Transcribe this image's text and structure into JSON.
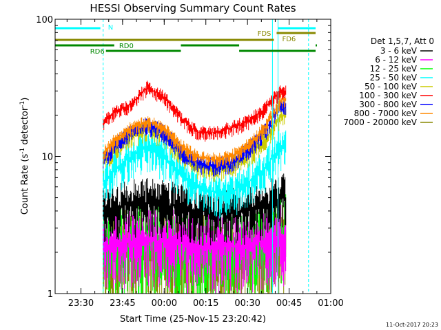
{
  "chart_data": {
    "type": "line",
    "title": "HESSI Observing Summary Count Rates",
    "xlabel": "Start Time (25-Nov-15 23:20:42)",
    "ylabel": "Count Rate (s",
    "ylabel_sup": "-1",
    "ylabel_tail": " detector",
    "ylabel_sup2": "-1",
    "ylabel_close": ")",
    "y_scale": "log",
    "ylim": [
      1,
      100
    ],
    "xlim": [
      "23:20:42",
      "01:00"
    ],
    "x_ticks": [
      "23:30",
      "23:45",
      "00:00",
      "00:15",
      "00:30",
      "00:45",
      "01:00"
    ],
    "y_ticks": [
      "1",
      "10",
      "100"
    ],
    "legend": {
      "placement": "right",
      "header": "Det 1,5,7, Att 0",
      "entries": [
        {
          "name": "3 - 6 keV",
          "color": "#000000"
        },
        {
          "name": "6 - 12 keV",
          "color": "#ff00ff"
        },
        {
          "name": "12 - 25 keV",
          "color": "#00ff00"
        },
        {
          "name": "25 - 50 keV",
          "color": "#00ffff"
        },
        {
          "name": "50 - 100 keV",
          "color": "#cccc00"
        },
        {
          "name": "100 - 300 keV",
          "color": "#ff0000"
        },
        {
          "name": "300 - 800 keV",
          "color": "#0000ff"
        },
        {
          "name": "800 - 7000 keV",
          "color": "#ff8800"
        },
        {
          "name": "7000 - 20000 keV",
          "color": "#888800"
        }
      ]
    },
    "series": [
      {
        "name": "100 - 300 keV",
        "color": "#ff0000",
        "x": [
          23.6333,
          23.7,
          23.8,
          23.9,
          24.0,
          24.1,
          24.2,
          24.3,
          24.4,
          24.5,
          24.6,
          24.7
        ],
        "y": [
          18,
          21,
          24,
          32,
          27,
          19,
          15,
          15,
          16,
          18,
          22,
          30
        ]
      },
      {
        "name": "800 - 7000 keV",
        "color": "#ff8800",
        "x": [
          23.6333,
          23.7,
          23.8,
          23.9,
          24.0,
          24.1,
          24.2,
          24.3,
          24.4,
          24.5,
          24.6,
          24.7
        ],
        "y": [
          10.5,
          13,
          16,
          18,
          16,
          12,
          10,
          9.5,
          10,
          12,
          16,
          26
        ]
      },
      {
        "name": "300 - 800 keV",
        "color": "#0000ff",
        "x": [
          23.6333,
          23.7,
          23.8,
          23.9,
          24.0,
          24.1,
          24.2,
          24.3,
          24.4,
          24.5,
          24.6,
          24.7
        ],
        "y": [
          9.5,
          12,
          15,
          17,
          15,
          11,
          9,
          8.5,
          9,
          11,
          15,
          24
        ]
      },
      {
        "name": "50 - 100 keV",
        "color": "#cccc00",
        "x": [
          23.6333,
          23.7,
          23.8,
          23.9,
          24.0,
          24.1,
          24.2,
          24.3,
          24.4,
          24.5,
          24.6,
          24.7
        ],
        "y": [
          9,
          11.5,
          14,
          16,
          14,
          10.5,
          8.5,
          8,
          8.5,
          10,
          13,
          20
        ]
      },
      {
        "name": "25 - 50 keV",
        "color": "#00ffff",
        "x": [
          23.6333,
          23.7,
          23.8,
          23.9,
          24.0,
          24.1,
          24.2,
          24.3,
          24.4,
          24.5,
          24.6,
          24.7
        ],
        "y": [
          6.5,
          8,
          10,
          12,
          10,
          7.5,
          6,
          5.5,
          5.5,
          6.5,
          8,
          12
        ]
      },
      {
        "name": "3 - 6 keV",
        "color": "#000000",
        "x": [
          23.6333,
          23.7,
          23.8,
          23.9,
          24.0,
          24.1,
          24.2,
          24.3,
          24.4,
          24.5,
          24.6,
          24.7
        ],
        "y": [
          4,
          4.3,
          4.5,
          4.6,
          4.5,
          4.2,
          4,
          3.9,
          3.9,
          4,
          4.3,
          5
        ]
      },
      {
        "name": "6 - 12 keV",
        "color": "#ff00ff",
        "x": [
          23.6333,
          23.7,
          23.8,
          23.9,
          24.0,
          24.1,
          24.2,
          24.3,
          24.4,
          24.5,
          24.6,
          24.7
        ],
        "y": [
          2.2,
          2.3,
          2.4,
          2.5,
          2.4,
          2.3,
          2.2,
          2.2,
          2.2,
          2.3,
          2.4,
          2.6
        ]
      },
      {
        "name": "12 - 25 keV",
        "color": "#00ff00",
        "x": [
          23.6333,
          23.7,
          23.8,
          23.9,
          24.0,
          24.1,
          24.2,
          24.3,
          24.4,
          24.5,
          24.6,
          24.7
        ],
        "y": [
          2,
          2.1,
          2.2,
          2.2,
          2.2,
          2.1,
          2,
          2,
          2,
          2.1,
          2.2,
          3
        ]
      },
      {
        "name": "7000 - 20000 keV",
        "color": "#888800",
        "x": [
          23.6333,
          23.7,
          23.8,
          23.9,
          24.0,
          24.1,
          24.2,
          24.3,
          24.4,
          24.5,
          24.6,
          24.7
        ],
        "y": [
          1.8,
          1.9,
          2,
          2,
          2,
          1.9,
          1.8,
          1.8,
          1.8,
          1.9,
          2,
          2.5
        ]
      }
    ],
    "annotations": [
      {
        "label": "N",
        "color": "#00ffff"
      },
      {
        "label": "FDS",
        "color": "#888800"
      },
      {
        "label": "FD6",
        "color": "#888800"
      },
      {
        "label": "RD0",
        "color": "#008800"
      },
      {
        "label": "RD6",
        "color": "#008800"
      }
    ]
  },
  "footer": {
    "timestamp": "11-Oct-2017 20:23"
  }
}
